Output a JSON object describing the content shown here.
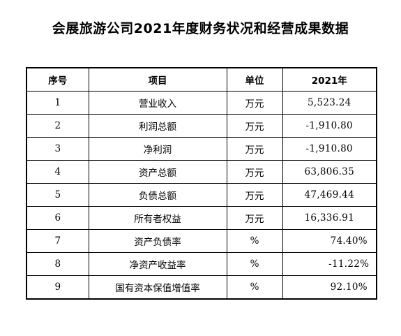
{
  "document": {
    "title": "会展旅游公司2021年度财务状况和经营成果数据"
  },
  "table": {
    "headers": {
      "index": "序号",
      "item": "项目",
      "unit": "单位",
      "year": "2021年"
    },
    "rows": [
      {
        "index": "1",
        "item": "营业收入",
        "unit": "万元",
        "value": "5,523.24"
      },
      {
        "index": "2",
        "item": "利润总额",
        "unit": "万元",
        "value": "-1,910.80"
      },
      {
        "index": "3",
        "item": "净利润",
        "unit": "万元",
        "value": "-1,910.80"
      },
      {
        "index": "4",
        "item": "资产总额",
        "unit": "万元",
        "value": "63,806.35"
      },
      {
        "index": "5",
        "item": "负债总额",
        "unit": "万元",
        "value": "47,469.44"
      },
      {
        "index": "6",
        "item": "所有者权益",
        "unit": "万元",
        "value": "16,336.91"
      },
      {
        "index": "7",
        "item": "资产负债率",
        "unit": "%",
        "value": "74.40%"
      },
      {
        "index": "8",
        "item": "净资产收益率",
        "unit": "%",
        "value": "-11.22%"
      },
      {
        "index": "9",
        "item": "国有资本保值增值率",
        "unit": "%",
        "value": "92.10%"
      }
    ]
  }
}
